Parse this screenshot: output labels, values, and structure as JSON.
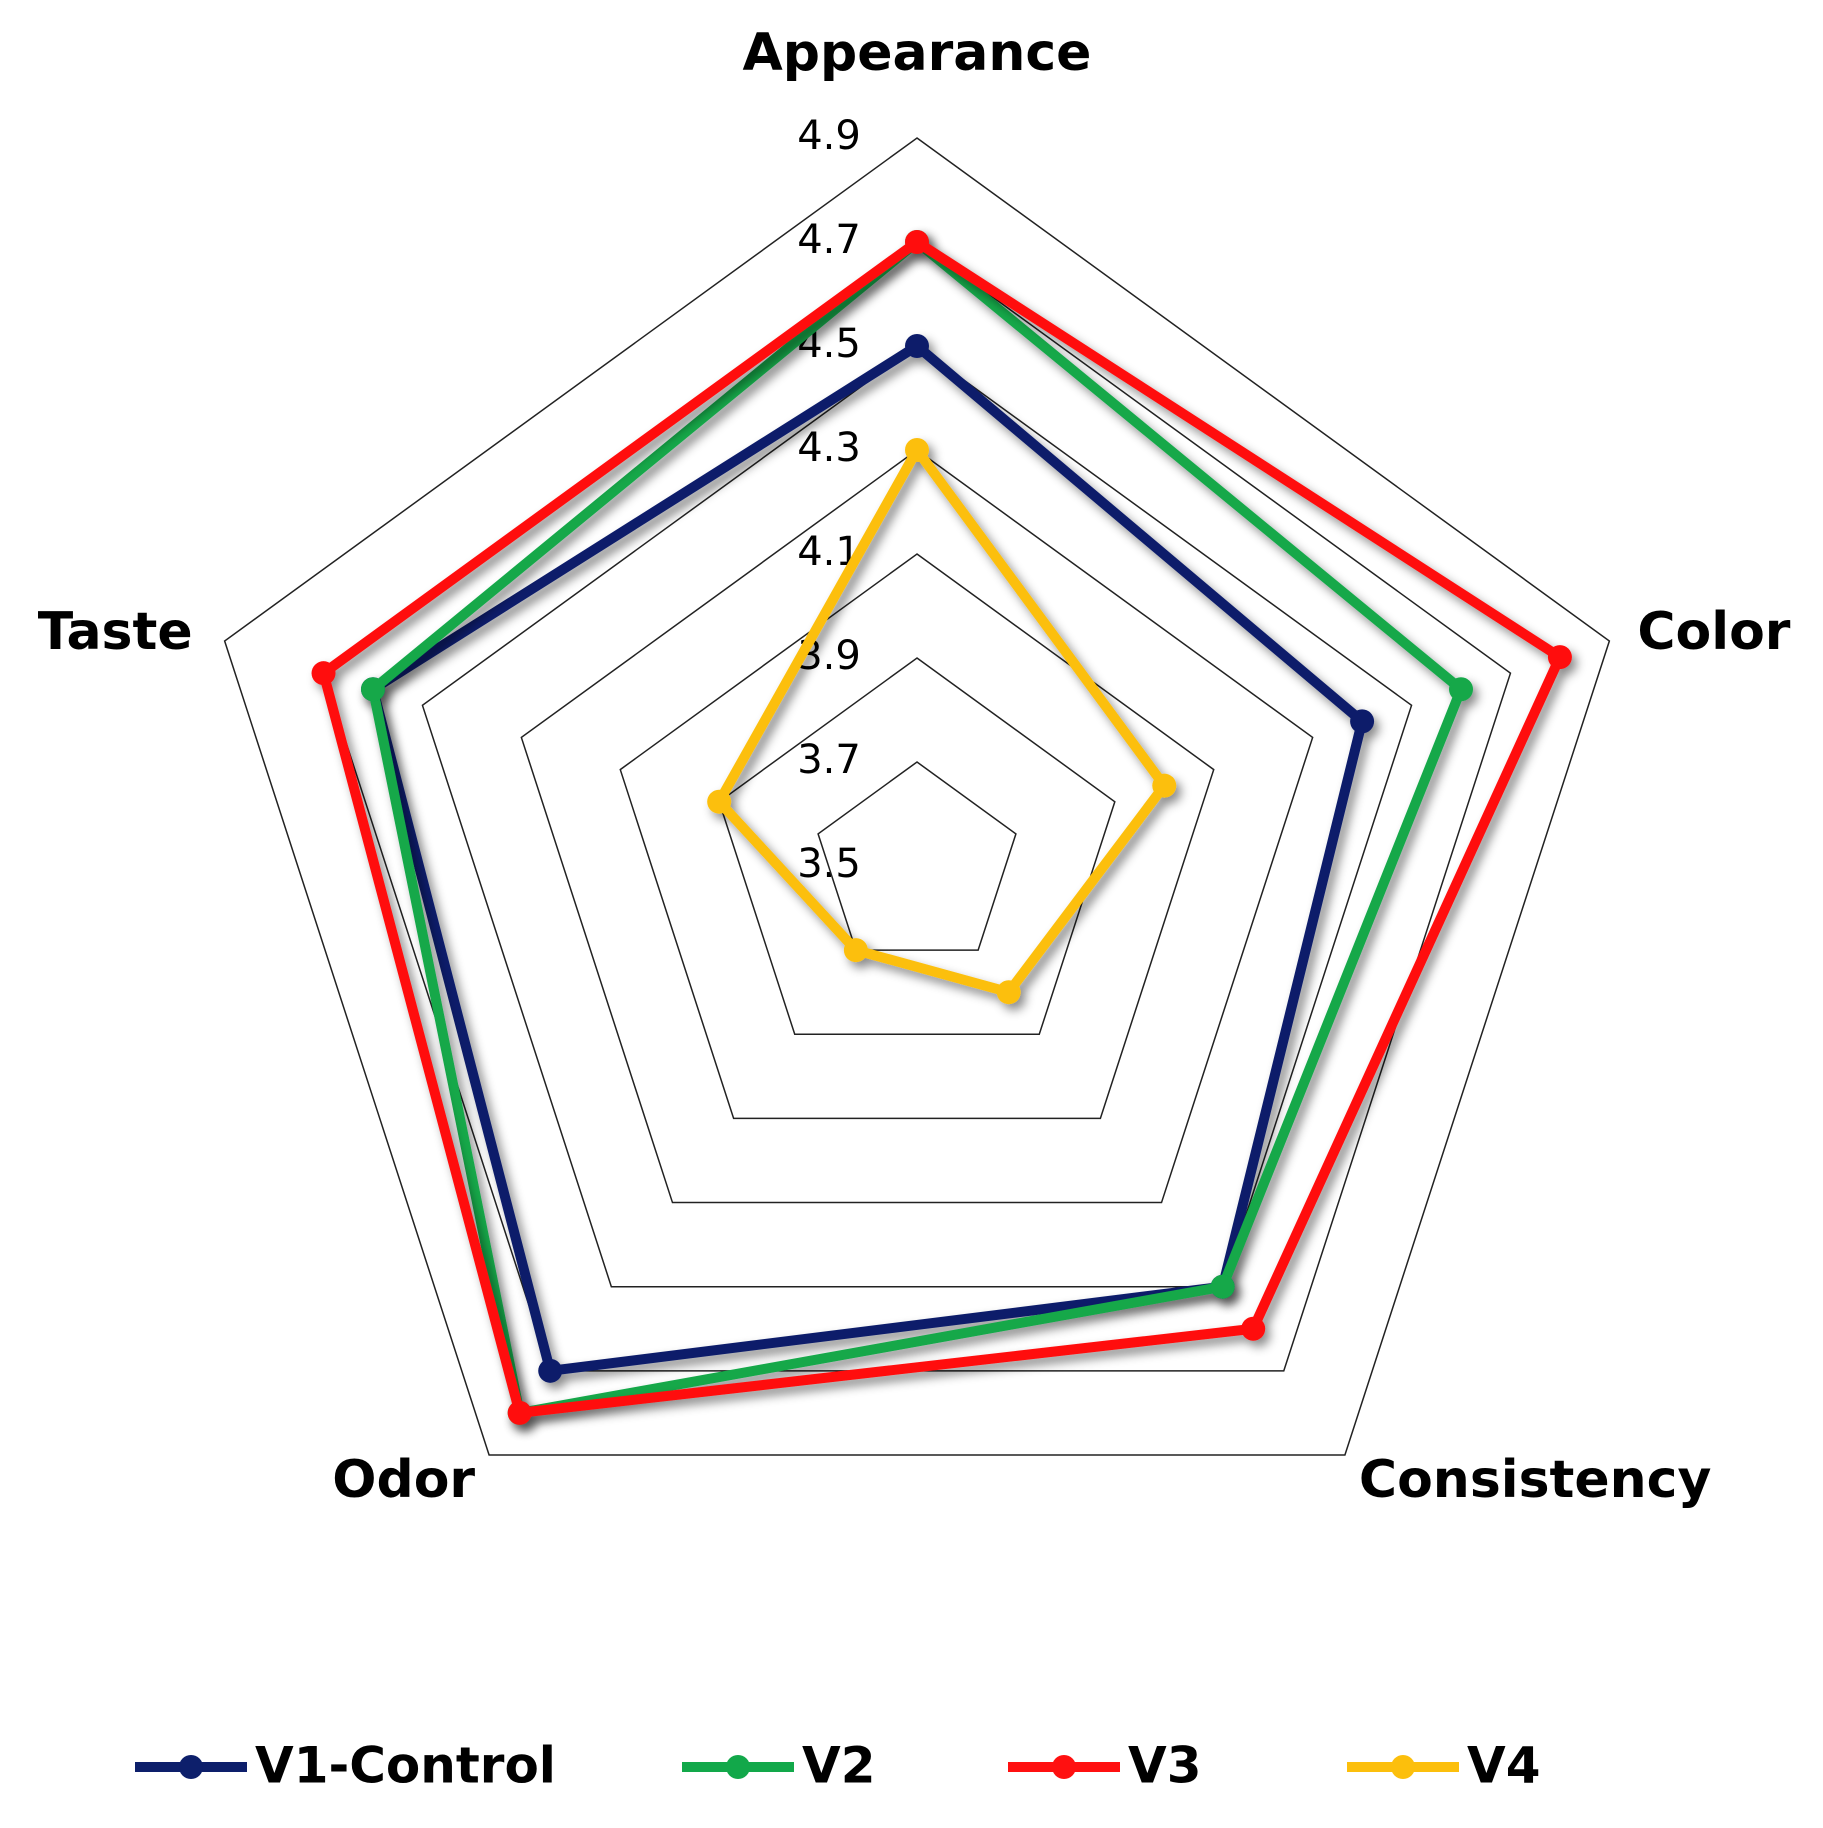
{
  "chart_data": {
    "type": "radar",
    "categories": [
      "Appearance",
      "Color",
      "Consistency",
      "Odor",
      "Taste"
    ],
    "ylim": [
      3.5,
      4.9
    ],
    "yticks": [
      3.5,
      3.7,
      3.9,
      4.1,
      4.3,
      4.5,
      4.7,
      4.9
    ],
    "grid": true,
    "legend": "bottom",
    "series": [
      {
        "name": "V1-Control",
        "color": "#0d1f6b",
        "values": [
          4.5,
          4.4,
          4.5,
          4.7,
          4.6
        ]
      },
      {
        "name": "V2",
        "color": "#12a84a",
        "values": [
          4.7,
          4.6,
          4.5,
          4.8,
          4.6
        ]
      },
      {
        "name": "V3",
        "color": "#ff1010",
        "values": [
          4.7,
          4.8,
          4.6,
          4.8,
          4.7
        ]
      },
      {
        "name": "V4",
        "color": "#fcbf0c",
        "values": [
          4.3,
          4.0,
          3.8,
          3.7,
          3.9
        ]
      }
    ]
  }
}
